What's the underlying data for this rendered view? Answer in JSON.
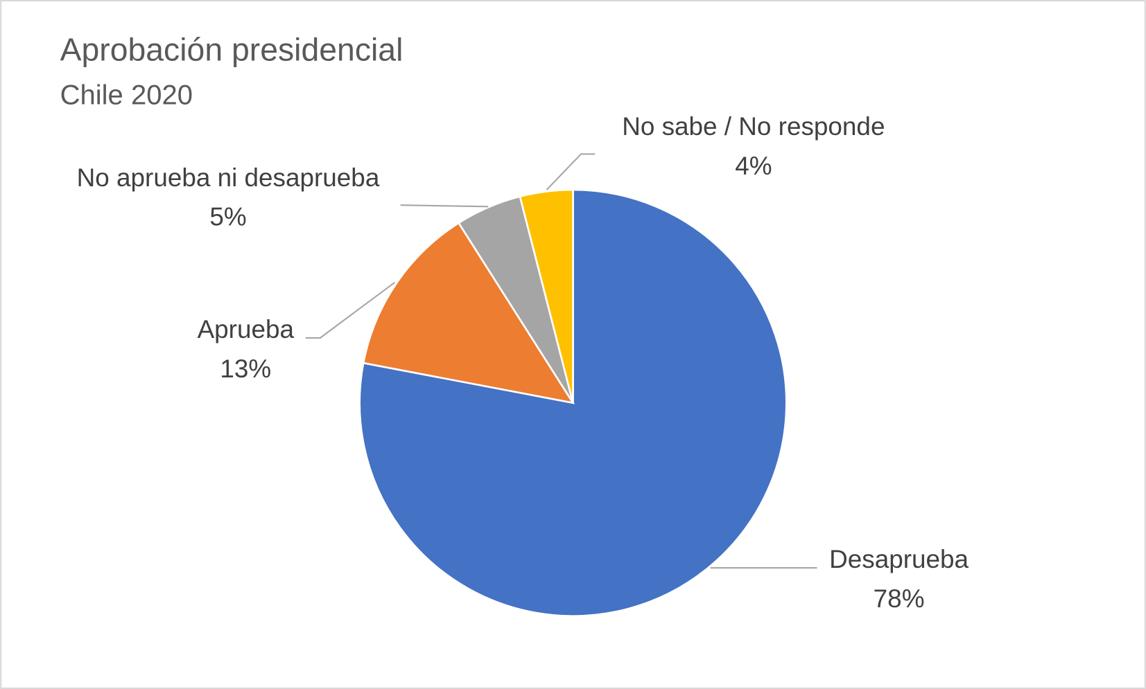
{
  "chart_data": {
    "type": "pie",
    "title": "Aprobación presidencial",
    "subtitle": "Chile 2020",
    "categories": [
      "Desaprueba",
      "Aprueba",
      "No aprueba ni desaprueba",
      "No sabe / No responde"
    ],
    "values": [
      78,
      13,
      5,
      4
    ],
    "value_labels": [
      "78%",
      "13%",
      "5%",
      "4%"
    ],
    "colors": [
      "#4472C4",
      "#ED7D31",
      "#A5A5A5",
      "#FFC000"
    ],
    "start_angle": "top, clockwise",
    "legend": "none (data labels with leader lines)"
  }
}
